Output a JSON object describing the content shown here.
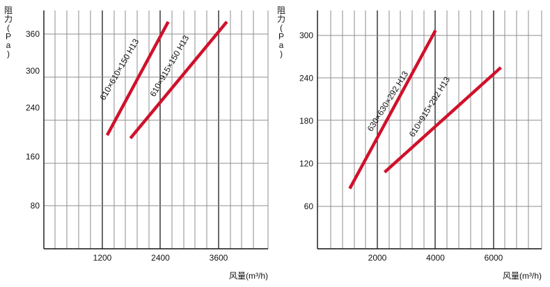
{
  "chart_data": [
    {
      "type": "line",
      "ylabel": "阻力(Pa)",
      "ylabel_parts": [
        "阻",
        "力",
        "(",
        "P",
        "a",
        ")"
      ],
      "xlabel": "风量(m³/h)",
      "x_ticks": [
        "1200",
        "2400",
        "3600"
      ],
      "y_ticks": [
        "80",
        "160",
        "240",
        "300",
        "360"
      ],
      "grid": true,
      "series": [
        {
          "name": "610×610×150 H13",
          "points": [
            [
              1300,
              195
            ],
            [
              2560,
              380
            ]
          ]
        },
        {
          "name": "610×915×150 H13",
          "points": [
            [
              1780,
              190
            ],
            [
              3770,
              380
            ]
          ]
        }
      ],
      "line_color": "#d0112b"
    },
    {
      "type": "line",
      "ylabel": "阻力(Pa)",
      "ylabel_parts": [
        "阻",
        "力",
        "(",
        "P",
        "a",
        ")"
      ],
      "xlabel": "风量(m³/h)",
      "x_ticks": [
        "2000",
        "4000",
        "6000"
      ],
      "y_ticks": [
        "60",
        "120",
        "180",
        "240",
        "300"
      ],
      "grid": true,
      "series": [
        {
          "name": "630×630×292 H13",
          "points": [
            [
              1050,
              85
            ],
            [
              4000,
              307
            ]
          ]
        },
        {
          "name": "610×915×292 H13",
          "points": [
            [
              2250,
              108
            ],
            [
              6250,
              255
            ]
          ]
        }
      ],
      "line_color": "#d0112b"
    }
  ]
}
